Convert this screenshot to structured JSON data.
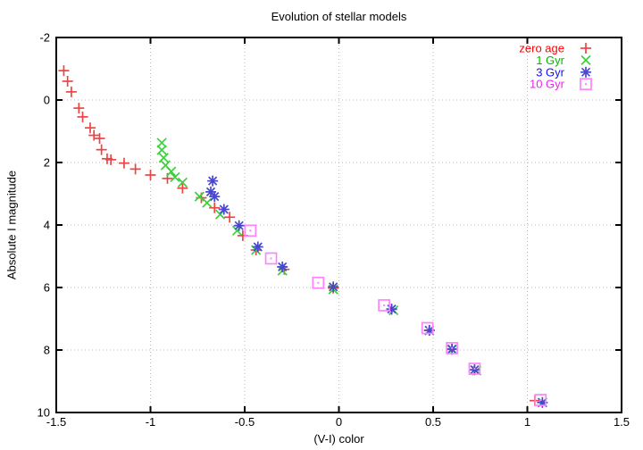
{
  "chart_data": {
    "type": "scatter",
    "title": "Evolution of stellar models",
    "xlabel": "(V-I) color",
    "ylabel": "Absolute I magnitude",
    "xlim": [
      -1.5,
      1.5
    ],
    "ylim": [
      -2,
      10
    ],
    "y_axis_inverted": true,
    "grid": true,
    "grid_color": "#b8b8b8",
    "axis_color": "#000000",
    "legend_position": "top-right-inside",
    "xticks": [
      -1.5,
      -1,
      -0.5,
      0,
      0.5,
      1,
      1.5
    ],
    "xtick_labels": [
      "-1.5",
      "-1",
      "-0.5",
      "0",
      "0.5",
      "1",
      "1.5"
    ],
    "yticks": [
      -2,
      0,
      2,
      4,
      6,
      8,
      10
    ],
    "ytick_labels": [
      "-2",
      "0",
      "2",
      "4",
      "6",
      "8",
      "10"
    ],
    "series": [
      {
        "name": "zero-age",
        "label": "zero age",
        "marker": "plus",
        "color": "#ee4444",
        "text_color": "#ff0000",
        "points": [
          [
            -1.46,
            -0.94
          ],
          [
            -1.44,
            -0.6
          ],
          [
            -1.42,
            -0.26
          ],
          [
            -1.38,
            0.26
          ],
          [
            -1.36,
            0.54
          ],
          [
            -1.32,
            0.89
          ],
          [
            -1.3,
            1.13
          ],
          [
            -1.27,
            1.23
          ],
          [
            -1.26,
            1.59
          ],
          [
            -1.23,
            1.88
          ],
          [
            -1.21,
            1.91
          ],
          [
            -1.14,
            2.02
          ],
          [
            -1.08,
            2.21
          ],
          [
            -1.0,
            2.4
          ],
          [
            -0.91,
            2.51
          ],
          [
            -0.83,
            2.82
          ],
          [
            -0.73,
            3.13
          ],
          [
            -0.66,
            3.45
          ],
          [
            -0.58,
            3.75
          ],
          [
            -0.51,
            4.34
          ],
          [
            -0.44,
            4.8
          ],
          [
            -0.29,
            5.42
          ],
          [
            -0.03,
            6.02
          ],
          [
            0.28,
            6.7
          ],
          [
            0.48,
            7.37
          ],
          [
            0.6,
            7.98
          ],
          [
            0.72,
            8.64
          ],
          [
            1.04,
            9.62
          ]
        ]
      },
      {
        "name": "1-gyr",
        "label": "1 Gyr",
        "marker": "cross",
        "color": "#3cd03c",
        "text_color": "#00bb00",
        "points": [
          [
            -0.94,
            1.37
          ],
          [
            -0.94,
            1.6
          ],
          [
            -0.93,
            1.85
          ],
          [
            -0.92,
            2.09
          ],
          [
            -0.89,
            2.29
          ],
          [
            -0.87,
            2.47
          ],
          [
            -0.83,
            2.64
          ],
          [
            -0.74,
            3.09
          ],
          [
            -0.7,
            3.29
          ],
          [
            -0.63,
            3.66
          ],
          [
            -0.54,
            4.18
          ],
          [
            -0.44,
            4.8
          ],
          [
            -0.3,
            5.46
          ],
          [
            -0.03,
            6.06
          ],
          [
            0.29,
            6.73
          ],
          [
            0.48,
            7.38
          ],
          [
            0.6,
            7.99
          ],
          [
            0.73,
            8.66
          ],
          [
            1.08,
            9.68
          ]
        ]
      },
      {
        "name": "3-gyr",
        "label": "3 Gyr",
        "marker": "star",
        "color": "#4848cc",
        "text_color": "#1111ee",
        "points": [
          [
            -0.67,
            2.59
          ],
          [
            -0.68,
            2.94
          ],
          [
            -0.66,
            3.09
          ],
          [
            -0.61,
            3.5
          ],
          [
            -0.53,
            4.02
          ],
          [
            -0.43,
            4.7
          ],
          [
            -0.3,
            5.34
          ],
          [
            -0.03,
            5.98
          ],
          [
            0.28,
            6.69
          ],
          [
            0.48,
            7.37
          ],
          [
            0.6,
            7.97
          ],
          [
            0.72,
            8.63
          ],
          [
            1.08,
            9.68
          ]
        ]
      },
      {
        "name": "10-gyr",
        "label": "10 Gyr",
        "marker": "square-dot",
        "color": "#ff82ff",
        "text_color": "#ee22ee",
        "points": [
          [
            -0.47,
            4.18
          ],
          [
            -0.36,
            5.07
          ],
          [
            -0.11,
            5.85
          ],
          [
            0.24,
            6.57
          ],
          [
            0.47,
            7.3
          ],
          [
            0.6,
            7.94
          ],
          [
            0.72,
            8.6
          ],
          [
            1.07,
            9.6
          ]
        ]
      }
    ]
  }
}
